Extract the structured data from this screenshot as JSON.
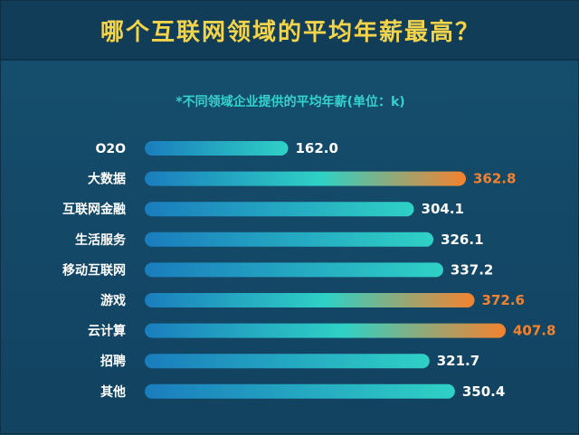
{
  "title": "哪个互联网领域的平均年薪最高？",
  "subtitle": "*不同领域企业提供的平均年薪(单位：k)",
  "colors": {
    "background": "#154563",
    "title": "#f3d44a",
    "subtitle": "#34d3cc",
    "bar_start": "#1a7dbd",
    "bar_end": "#2fd1c5",
    "bar_highlight_end": "#f3822e",
    "value_normal": "#ffffff",
    "value_highlight": "#f3822e"
  },
  "chart_data": {
    "type": "bar",
    "orientation": "horizontal",
    "categories": [
      "O2O",
      "大数据",
      "互联网金融",
      "生活服务",
      "移动互联网",
      "游戏",
      "云计算",
      "招聘",
      "其他"
    ],
    "values": [
      162.0,
      362.8,
      304.1,
      326.1,
      337.2,
      372.6,
      407.8,
      321.7,
      350.4
    ],
    "value_labels": [
      "162.0",
      "362.8",
      "304.1",
      "326.1",
      "337.2",
      "372.6",
      "407.8",
      "321.7",
      "350.4"
    ],
    "highlighted": [
      "大数据",
      "游戏",
      "云计算"
    ],
    "xlim": [
      0,
      420
    ],
    "grid": false,
    "legend": "none"
  }
}
